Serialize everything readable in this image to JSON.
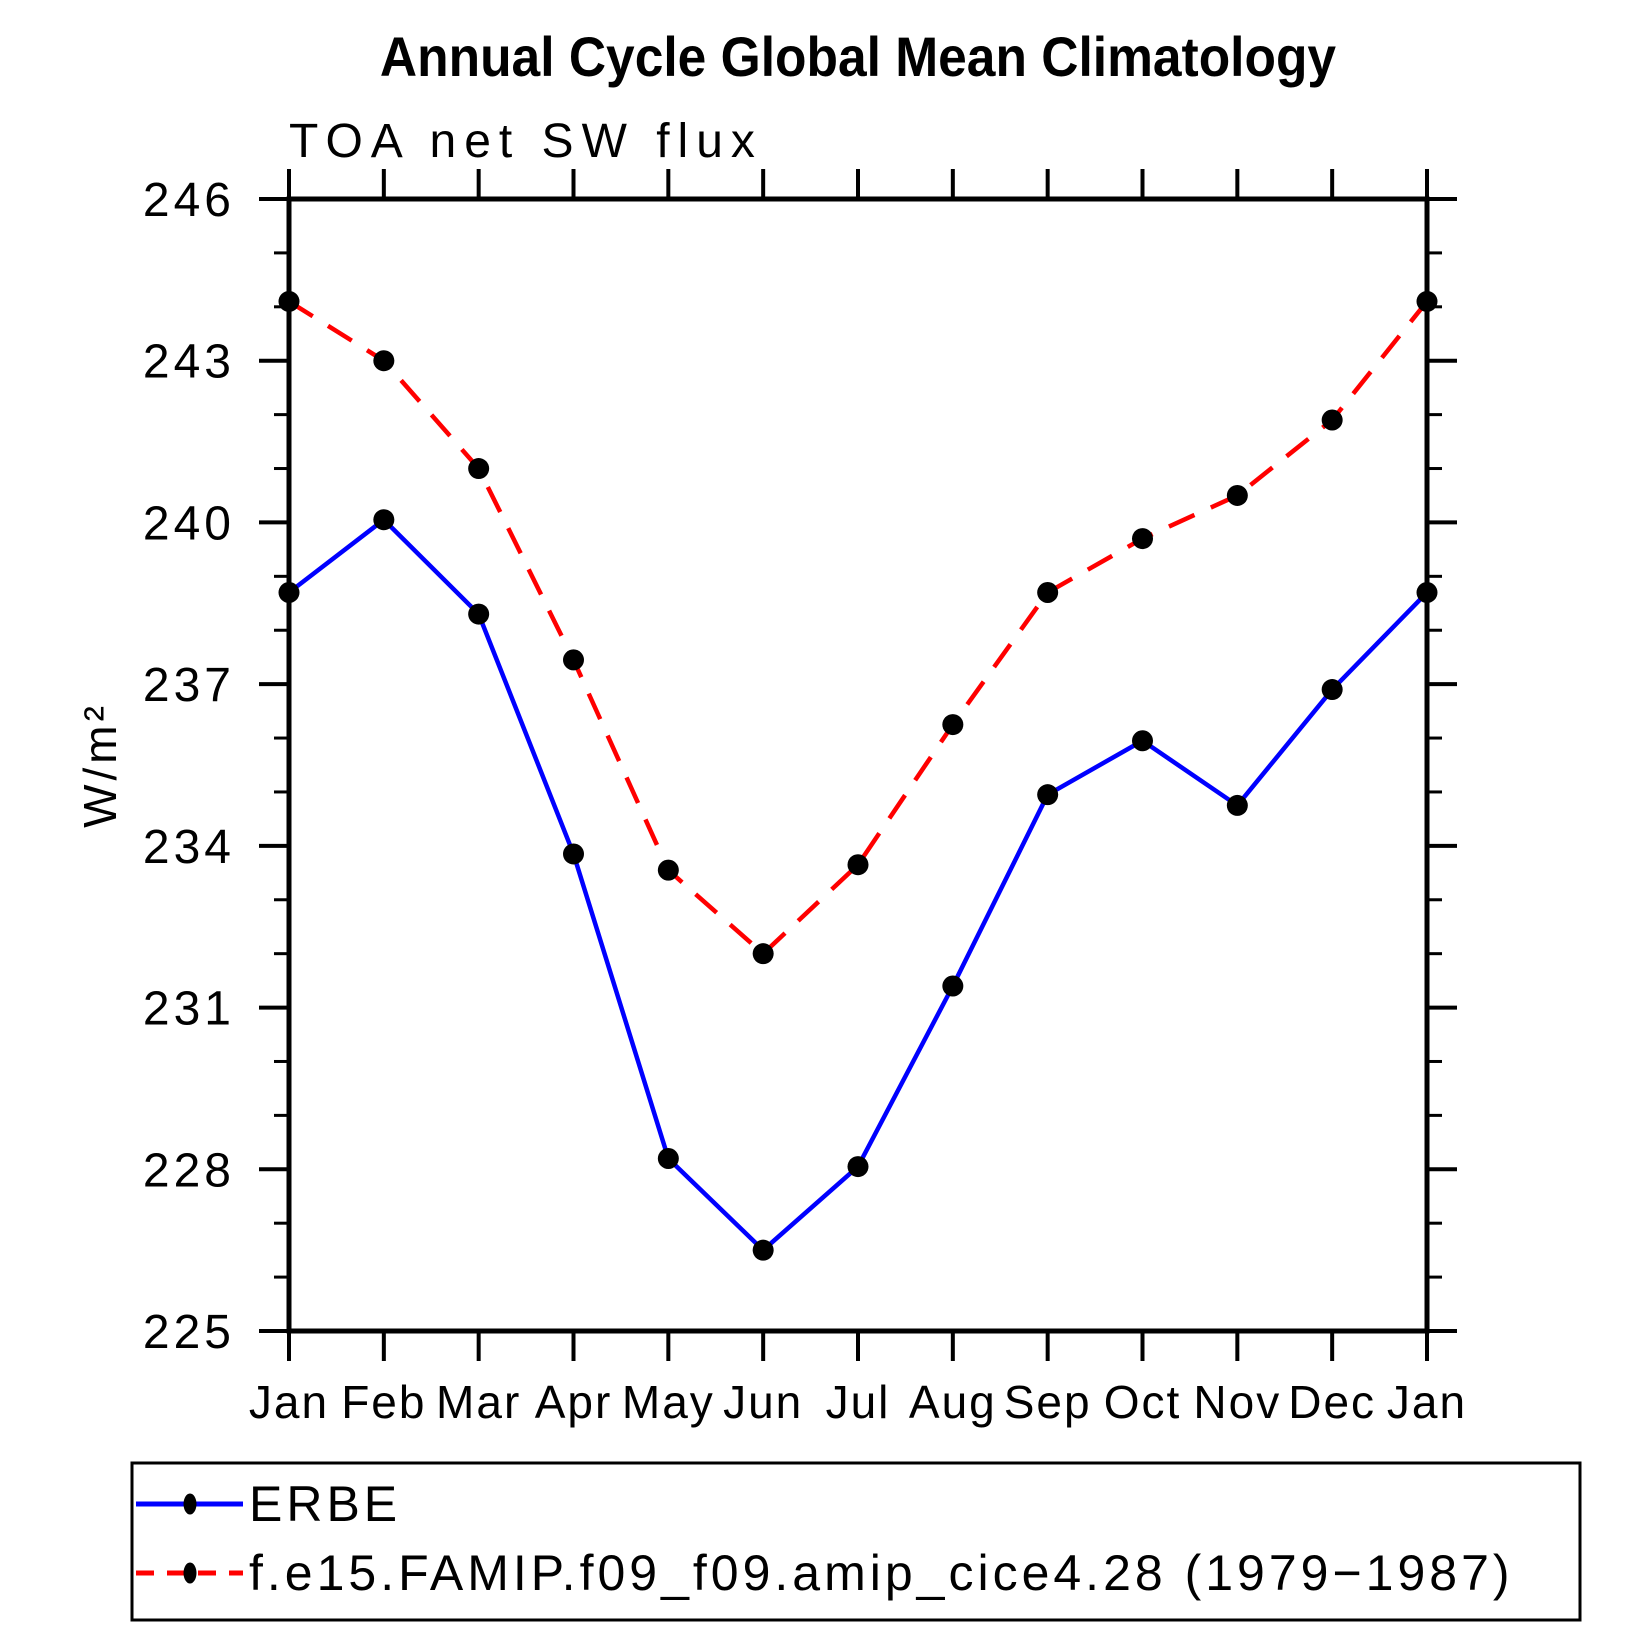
{
  "chart_data": {
    "type": "line",
    "title": "Annual Cycle Global Mean Climatology",
    "subtitle": "TOA net SW flux",
    "ylabel": "W/m²",
    "categories": [
      "Jan",
      "Feb",
      "Mar",
      "Apr",
      "May",
      "Jun",
      "Jul",
      "Aug",
      "Sep",
      "Oct",
      "Nov",
      "Dec",
      "Jan"
    ],
    "ylim": [
      225,
      246
    ],
    "y_major_ticks": [
      225,
      228,
      231,
      234,
      237,
      240,
      243,
      246
    ],
    "y_minor_step": 1,
    "grid": false,
    "legend_position": "bottom-left-box",
    "axis_color": "#000000",
    "marker_color": "#000000",
    "series": [
      {
        "name": "ERBE",
        "color": "#0000ff",
        "line_style": "solid",
        "marker": "filled-circle",
        "values": [
          238.7,
          240.05,
          238.3,
          233.85,
          228.2,
          226.5,
          228.05,
          231.4,
          234.95,
          235.95,
          234.75,
          236.9,
          238.7
        ]
      },
      {
        "name": "f.e15.FAMIP.f09_f09.amip_cice4.28 (1979−1987)",
        "color": "#ff0000",
        "line_style": "dashed",
        "marker": "filled-circle",
        "values": [
          244.1,
          243.0,
          241.0,
          237.45,
          233.55,
          232.0,
          233.65,
          236.25,
          238.7,
          239.7,
          240.5,
          241.9,
          244.1
        ]
      }
    ]
  }
}
